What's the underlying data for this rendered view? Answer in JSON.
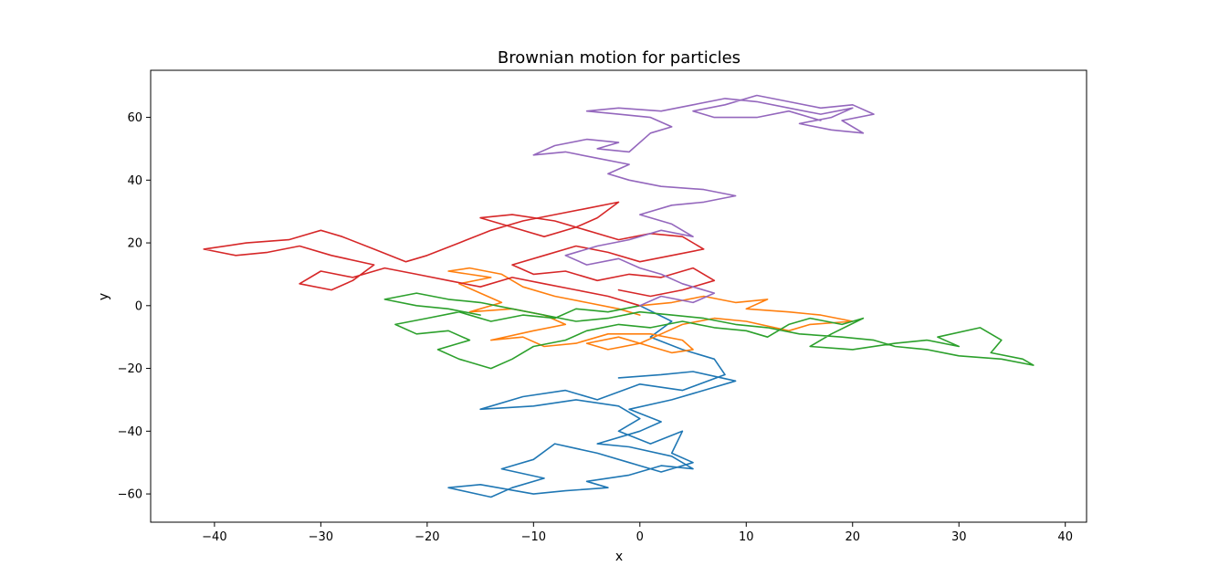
{
  "chart_data": {
    "type": "line",
    "title": "Brownian motion for particles",
    "xlabel": "x",
    "ylabel": "y",
    "xlim": [
      -46,
      42
    ],
    "ylim": [
      -69,
      75
    ],
    "xticks": [
      -40,
      -30,
      -20,
      -10,
      0,
      10,
      20,
      30,
      40
    ],
    "yticks": [
      -60,
      -40,
      -20,
      0,
      20,
      40,
      60
    ],
    "xtick_labels": [
      "−40",
      "−30",
      "−20",
      "−10",
      "0",
      "10",
      "20",
      "30",
      "40"
    ],
    "ytick_labels": [
      "−60",
      "−40",
      "−20",
      "0",
      "20",
      "40",
      "60"
    ],
    "grid": false,
    "series": [
      {
        "color": "#1f77b4",
        "points": [
          [
            0,
            0
          ],
          [
            3,
            -5
          ],
          [
            1,
            -10
          ],
          [
            4,
            -14
          ],
          [
            7,
            -17
          ],
          [
            8,
            -22
          ],
          [
            4,
            -27
          ],
          [
            0,
            -25
          ],
          [
            -4,
            -30
          ],
          [
            -7,
            -27
          ],
          [
            -11,
            -29
          ],
          [
            -15,
            -33
          ],
          [
            -10,
            -32
          ],
          [
            -6,
            -30
          ],
          [
            -2,
            -32
          ],
          [
            0,
            -36
          ],
          [
            -2,
            -40
          ],
          [
            1,
            -44
          ],
          [
            4,
            -40
          ],
          [
            3,
            -47
          ],
          [
            5,
            -50
          ],
          [
            2,
            -53
          ],
          [
            -1,
            -50
          ],
          [
            -4,
            -47
          ],
          [
            -8,
            -44
          ],
          [
            -10,
            -49
          ],
          [
            -13,
            -52
          ],
          [
            -9,
            -55
          ],
          [
            -12,
            -58
          ],
          [
            -14,
            -61
          ],
          [
            -18,
            -58
          ],
          [
            -15,
            -57
          ],
          [
            -10,
            -60
          ],
          [
            -7,
            -59
          ],
          [
            -3,
            -58
          ],
          [
            -5,
            -56
          ],
          [
            -1,
            -54
          ],
          [
            2,
            -51
          ],
          [
            5,
            -52
          ],
          [
            3,
            -48
          ],
          [
            -1,
            -45
          ],
          [
            -4,
            -44
          ],
          [
            0,
            -40
          ],
          [
            2,
            -37
          ],
          [
            -1,
            -33
          ],
          [
            3,
            -30
          ],
          [
            6,
            -27
          ],
          [
            9,
            -24
          ],
          [
            5,
            -21
          ],
          [
            2,
            -22
          ],
          [
            -2,
            -23
          ]
        ]
      },
      {
        "color": "#ff7f0e",
        "points": [
          [
            0,
            0
          ],
          [
            3,
            1
          ],
          [
            6,
            3
          ],
          [
            9,
            1
          ],
          [
            12,
            2
          ],
          [
            10,
            -1
          ],
          [
            14,
            -2
          ],
          [
            17,
            -3
          ],
          [
            20,
            -5
          ],
          [
            16,
            -6
          ],
          [
            14,
            -8
          ],
          [
            10,
            -5
          ],
          [
            7,
            -4
          ],
          [
            4,
            -6
          ],
          [
            2,
            -9
          ],
          [
            0,
            -12
          ],
          [
            -3,
            -14
          ],
          [
            -5,
            -12
          ],
          [
            -2,
            -10
          ],
          [
            1,
            -13
          ],
          [
            3,
            -15
          ],
          [
            5,
            -14
          ],
          [
            4,
            -11
          ],
          [
            1,
            -9
          ],
          [
            -3,
            -9
          ],
          [
            -6,
            -12
          ],
          [
            -9,
            -13
          ],
          [
            -11,
            -10
          ],
          [
            -14,
            -11
          ],
          [
            -10,
            -8
          ],
          [
            -7,
            -6
          ],
          [
            -9,
            -3
          ],
          [
            -12,
            -1
          ],
          [
            -16,
            -2
          ],
          [
            -13,
            1
          ],
          [
            -15,
            4
          ],
          [
            -17,
            7
          ],
          [
            -14,
            9
          ],
          [
            -18,
            11
          ],
          [
            -16,
            12
          ],
          [
            -13,
            10
          ],
          [
            -11,
            6
          ],
          [
            -8,
            3
          ],
          [
            -5,
            1
          ],
          [
            -2,
            -1
          ],
          [
            0,
            -3
          ]
        ]
      },
      {
        "color": "#2ca02c",
        "points": [
          [
            0,
            0
          ],
          [
            -3,
            -2
          ],
          [
            -6,
            -1
          ],
          [
            -8,
            -4
          ],
          [
            -11,
            -3
          ],
          [
            -14,
            -5
          ],
          [
            -17,
            -2
          ],
          [
            -20,
            -4
          ],
          [
            -23,
            -6
          ],
          [
            -21,
            -9
          ],
          [
            -18,
            -8
          ],
          [
            -16,
            -11
          ],
          [
            -19,
            -14
          ],
          [
            -17,
            -17
          ],
          [
            -14,
            -20
          ],
          [
            -12,
            -17
          ],
          [
            -10,
            -13
          ],
          [
            -7,
            -11
          ],
          [
            -5,
            -8
          ],
          [
            -2,
            -6
          ],
          [
            1,
            -7
          ],
          [
            4,
            -5
          ],
          [
            7,
            -7
          ],
          [
            10,
            -8
          ],
          [
            12,
            -10
          ],
          [
            14,
            -6
          ],
          [
            16,
            -4
          ],
          [
            19,
            -6
          ],
          [
            21,
            -4
          ],
          [
            18,
            -9
          ],
          [
            16,
            -13
          ],
          [
            20,
            -14
          ],
          [
            24,
            -12
          ],
          [
            27,
            -11
          ],
          [
            30,
            -13
          ],
          [
            28,
            -10
          ],
          [
            32,
            -7
          ],
          [
            34,
            -11
          ],
          [
            33,
            -15
          ],
          [
            36,
            -17
          ],
          [
            37,
            -19
          ],
          [
            34,
            -17
          ],
          [
            30,
            -16
          ],
          [
            27,
            -14
          ],
          [
            24,
            -13
          ],
          [
            22,
            -11
          ],
          [
            19,
            -10
          ],
          [
            15,
            -9
          ],
          [
            12,
            -7
          ],
          [
            9,
            -6
          ],
          [
            6,
            -4
          ],
          [
            3,
            -3
          ],
          [
            0,
            -2
          ],
          [
            -3,
            -4
          ],
          [
            -6,
            -5
          ],
          [
            -9,
            -3
          ],
          [
            -12,
            -1
          ],
          [
            -15,
            1
          ],
          [
            -18,
            2
          ],
          [
            -21,
            4
          ],
          [
            -24,
            2
          ],
          [
            -21,
            0
          ],
          [
            -18,
            -1
          ],
          [
            -15,
            -3
          ]
        ]
      },
      {
        "color": "#d62728",
        "points": [
          [
            0,
            0
          ],
          [
            -3,
            3
          ],
          [
            -6,
            5
          ],
          [
            -9,
            7
          ],
          [
            -12,
            9
          ],
          [
            -15,
            6
          ],
          [
            -18,
            8
          ],
          [
            -21,
            10
          ],
          [
            -24,
            12
          ],
          [
            -27,
            9
          ],
          [
            -30,
            11
          ],
          [
            -32,
            7
          ],
          [
            -29,
            5
          ],
          [
            -27,
            8
          ],
          [
            -25,
            13
          ],
          [
            -29,
            16
          ],
          [
            -32,
            19
          ],
          [
            -35,
            17
          ],
          [
            -38,
            16
          ],
          [
            -41,
            18
          ],
          [
            -37,
            20
          ],
          [
            -33,
            21
          ],
          [
            -30,
            24
          ],
          [
            -28,
            22
          ],
          [
            -25,
            18
          ],
          [
            -22,
            14
          ],
          [
            -20,
            16
          ],
          [
            -17,
            20
          ],
          [
            -14,
            24
          ],
          [
            -11,
            27
          ],
          [
            -8,
            29
          ],
          [
            -5,
            31
          ],
          [
            -2,
            33
          ],
          [
            -4,
            28
          ],
          [
            -6,
            25
          ],
          [
            -9,
            22
          ],
          [
            -12,
            25
          ],
          [
            -15,
            28
          ],
          [
            -12,
            29
          ],
          [
            -8,
            27
          ],
          [
            -5,
            24
          ],
          [
            -2,
            21
          ],
          [
            1,
            23
          ],
          [
            4,
            22
          ],
          [
            6,
            18
          ],
          [
            3,
            16
          ],
          [
            0,
            14
          ],
          [
            -3,
            17
          ],
          [
            -6,
            19
          ],
          [
            -9,
            16
          ],
          [
            -12,
            13
          ],
          [
            -10,
            10
          ],
          [
            -7,
            11
          ],
          [
            -4,
            8
          ],
          [
            -1,
            10
          ],
          [
            2,
            9
          ],
          [
            5,
            12
          ],
          [
            7,
            8
          ],
          [
            4,
            5
          ],
          [
            1,
            3
          ],
          [
            -2,
            5
          ]
        ]
      },
      {
        "color": "#9467bd",
        "points": [
          [
            0,
            0
          ],
          [
            2,
            3
          ],
          [
            5,
            1
          ],
          [
            7,
            4
          ],
          [
            4,
            7
          ],
          [
            2,
            10
          ],
          [
            0,
            12
          ],
          [
            -2,
            15
          ],
          [
            -5,
            13
          ],
          [
            -7,
            16
          ],
          [
            -4,
            19
          ],
          [
            -1,
            21
          ],
          [
            2,
            24
          ],
          [
            5,
            22
          ],
          [
            3,
            26
          ],
          [
            0,
            29
          ],
          [
            3,
            32
          ],
          [
            6,
            33
          ],
          [
            9,
            35
          ],
          [
            6,
            37
          ],
          [
            2,
            38
          ],
          [
            -1,
            40
          ],
          [
            -3,
            42
          ],
          [
            -1,
            45
          ],
          [
            -4,
            47
          ],
          [
            -7,
            49
          ],
          [
            -10,
            48
          ],
          [
            -8,
            51
          ],
          [
            -5,
            53
          ],
          [
            -2,
            52
          ],
          [
            -4,
            50
          ],
          [
            -1,
            49
          ],
          [
            1,
            55
          ],
          [
            3,
            57
          ],
          [
            1,
            60
          ],
          [
            -2,
            61
          ],
          [
            -5,
            62
          ],
          [
            -2,
            63
          ],
          [
            2,
            62
          ],
          [
            5,
            64
          ],
          [
            8,
            66
          ],
          [
            11,
            65
          ],
          [
            14,
            63
          ],
          [
            17,
            61
          ],
          [
            20,
            63
          ],
          [
            18,
            60
          ],
          [
            15,
            58
          ],
          [
            18,
            56
          ],
          [
            21,
            55
          ],
          [
            19,
            59
          ],
          [
            22,
            61
          ],
          [
            20,
            64
          ],
          [
            17,
            63
          ],
          [
            14,
            65
          ],
          [
            11,
            67
          ],
          [
            8,
            64
          ],
          [
            5,
            62
          ],
          [
            7,
            60
          ],
          [
            11,
            60
          ],
          [
            14,
            62
          ],
          [
            17,
            59
          ]
        ]
      }
    ]
  }
}
